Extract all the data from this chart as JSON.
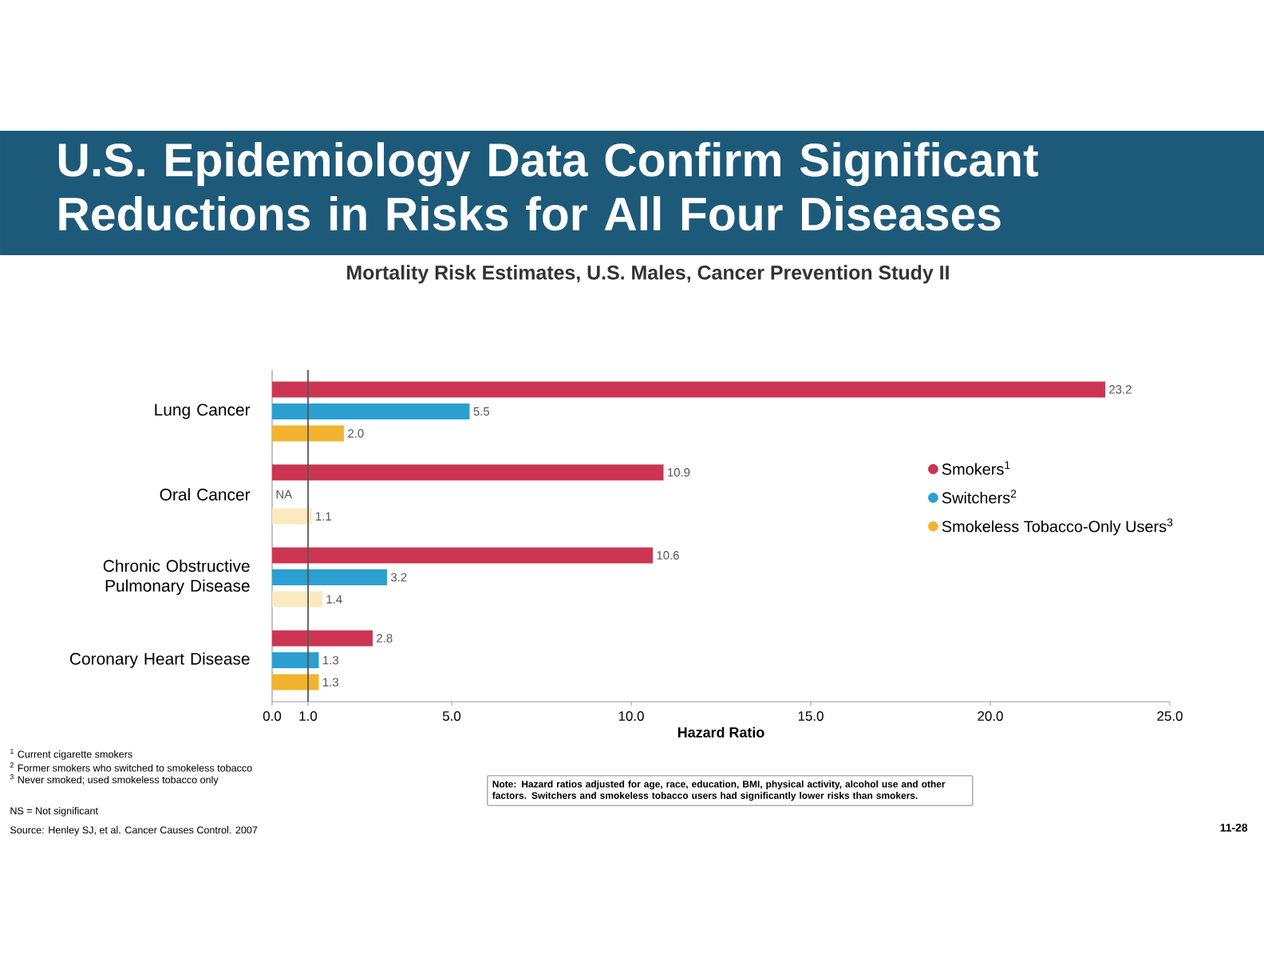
{
  "chart_data": {
    "type": "bar",
    "orientation": "horizontal",
    "title": "U.S. Epidemiology Data Confirm Significant Reductions in Risks for All Four Diseases",
    "subtitle": "Mortality Risk Estimates, U.S. Males, Cancer Prevention Study II",
    "xlabel": "Hazard Ratio",
    "categories": [
      "Lung Cancer",
      "Oral Cancer",
      "Chronic Obstructive Pulmonary Disease",
      "Coronary Heart Disease"
    ],
    "series": [
      {
        "name": "Smokers$^{1}$",
        "color": "#cc3552",
        "values": [
          23.2,
          10.9,
          10.6,
          2.8
        ],
        "value_labels": [
          "23.2",
          "10.9",
          "10.6",
          "2.8"
        ]
      },
      {
        "name": "Switchers$^{2}$",
        "color": "#2a9fd0",
        "values": [
          5.5,
          null,
          3.2,
          1.3
        ],
        "value_labels": [
          "5.5",
          "NA",
          "3.2",
          "1.3"
        ]
      },
      {
        "name": "Smokeless Tobacco-Only Users$^{3}$",
        "color": "#f2b42e",
        "colors": [
          "#f2b42e",
          "#faeabf",
          "#faeabf",
          "#f2b42e"
        ],
        "values": [
          2.0,
          1.1,
          1.4,
          1.3
        ],
        "value_labels": [
          "2.0",
          "1.1",
          "1.4",
          "1.3"
        ]
      }
    ],
    "xlim": [
      0,
      25
    ],
    "xticks": [
      {
        "value": 0,
        "label": "0.0"
      },
      {
        "value": 1,
        "label": "1.0"
      },
      {
        "value": 5,
        "label": "5.0"
      },
      {
        "value": 10,
        "label": "10.0"
      },
      {
        "value": 15,
        "label": "15.0"
      },
      {
        "value": 20,
        "label": "20.0"
      },
      {
        "value": 25,
        "label": "25.0"
      }
    ],
    "ref_lines": [
      {
        "axis": "x",
        "value": 1,
        "color": "#555555"
      }
    ],
    "legend": "right",
    "annotations": [
      "$^{1}$ Current cigarette smokers",
      "$^{2}$ Former smokers who switched to smokeless tobacco",
      "$^{3}$ Never smoked; used smokeless tobacco only",
      "NS = Not significant",
      "Source: Henley SJ, et al. Cancer Causes Control. 2007",
      "Note: Hazard ratios adjusted for age, race, education, BMI, physical activity, alcohol use and other factors. Switchers and smokeless tobacco users had significantly lower risks than smokers.",
      "11-28"
    ]
  }
}
